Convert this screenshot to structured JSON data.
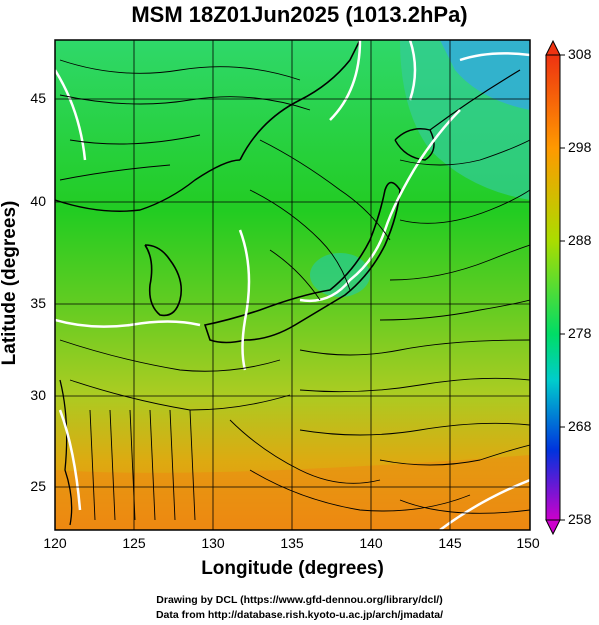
{
  "title": "MSM 18Z01Jun2025 (1013.2hPa)",
  "xaxis": {
    "label": "Longitude (degrees)",
    "ticks": [
      "120",
      "125",
      "130",
      "135",
      "140",
      "145",
      "150"
    ]
  },
  "yaxis": {
    "label": "Latitude  (degrees)",
    "ticks": [
      "45",
      "40",
      "35",
      "30",
      "25"
    ]
  },
  "colorbar": {
    "ticks": [
      "308",
      "298",
      "288",
      "278",
      "268",
      "258"
    ]
  },
  "credits": {
    "line1": "Drawing by DCL (https://www.gfd-dennou.org/library/dcl/)",
    "line2": "Data from http://database.rish.kyoto-u.ac.jp/arch/jmadata/"
  }
}
